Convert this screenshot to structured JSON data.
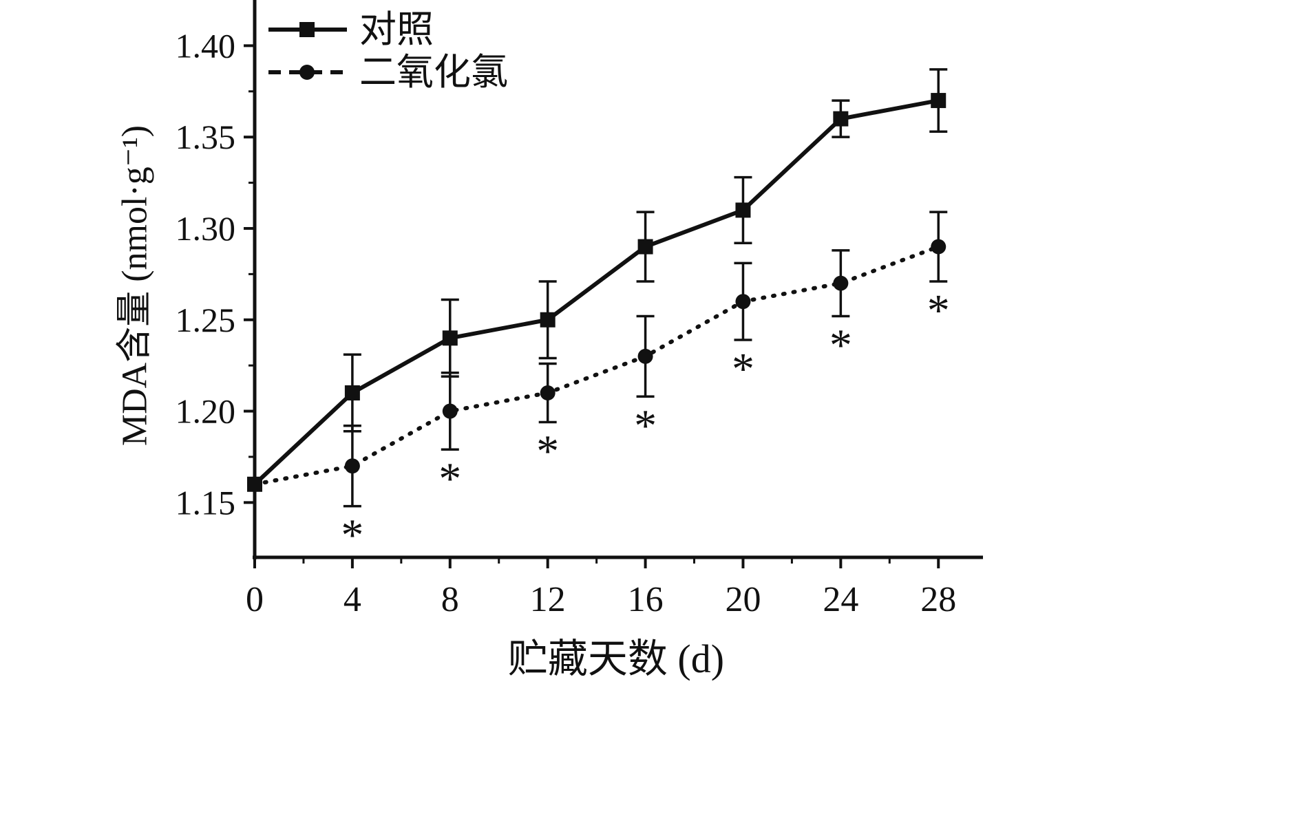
{
  "figure": {
    "background": "#ffffff",
    "ink_color": "#111111"
  },
  "chart_data": {
    "type": "line",
    "title": "",
    "xlabel": "贮藏天数 (d)",
    "ylabel": "MDA含量 (nmol·g⁻¹)",
    "x": [
      0,
      4,
      8,
      12,
      16,
      20,
      24,
      28
    ],
    "xticks": {
      "values": [
        0,
        4,
        8,
        12,
        16,
        20,
        24,
        28
      ],
      "labels": [
        "0",
        "4",
        "8",
        "12",
        "16",
        "20",
        "24",
        "28"
      ]
    },
    "yticks": {
      "values": [
        1.15,
        1.2,
        1.25,
        1.3,
        1.35,
        1.4
      ],
      "labels": [
        "1.15",
        "1.20",
        "1.25",
        "1.30",
        "1.35",
        "1.40"
      ]
    },
    "xlim": [
      0,
      29.6
    ],
    "ylim": [
      1.12,
      1.425
    ],
    "grid": false,
    "legend_position": "top-left-inside",
    "significance_symbol": "*",
    "series": [
      {
        "name": "对照",
        "marker": "square",
        "line_style": "solid",
        "values": [
          1.16,
          1.21,
          1.24,
          1.25,
          1.29,
          1.31,
          1.36,
          1.37
        ],
        "errors": [
          0,
          0.021,
          0.021,
          0.021,
          0.019,
          0.018,
          0.01,
          0.017
        ],
        "significant": [
          false,
          false,
          false,
          false,
          false,
          false,
          false,
          false
        ]
      },
      {
        "name": "二氧化氯",
        "marker": "circle",
        "line_style": "dotted",
        "values": [
          1.16,
          1.17,
          1.2,
          1.21,
          1.23,
          1.26,
          1.27,
          1.29
        ],
        "errors": [
          0,
          0.022,
          0.021,
          0.016,
          0.022,
          0.021,
          0.018,
          0.019
        ],
        "significant": [
          false,
          true,
          true,
          true,
          true,
          true,
          true,
          true
        ]
      }
    ]
  }
}
